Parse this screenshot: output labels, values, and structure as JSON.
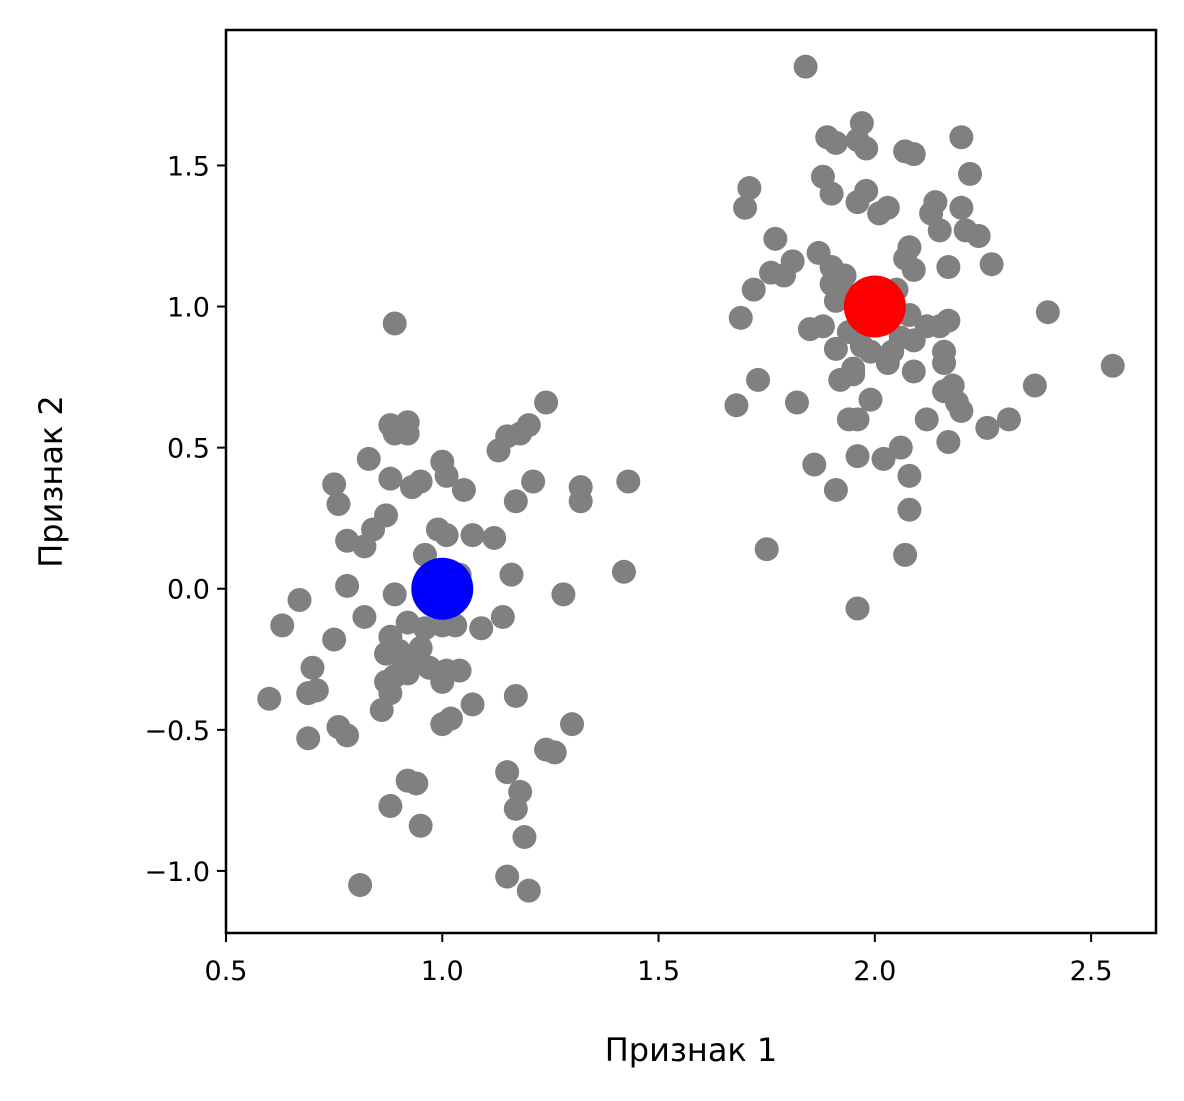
{
  "chart_data": {
    "type": "scatter",
    "title": "",
    "xlabel": "Признак 1",
    "ylabel": "Признак 2",
    "xlim": [
      0.5,
      2.65
    ],
    "ylim": [
      -1.22,
      1.98
    ],
    "grid": false,
    "legend": "none",
    "xticks": [
      0.5,
      1.0,
      1.5,
      2.0,
      2.5
    ],
    "xtick_labels": [
      "0.5",
      "1.0",
      "1.5",
      "2.0",
      "2.5"
    ],
    "yticks": [
      -1.0,
      -0.5,
      0.0,
      0.5,
      1.0,
      1.5
    ],
    "ytick_labels": [
      "−1.0",
      "−0.5",
      "0.0",
      "0.5",
      "1.0",
      "1.5"
    ],
    "colors": {
      "points": "#808080",
      "center_1": "#0000ff",
      "center_2": "#ff0000"
    },
    "series": [
      {
        "color": "#808080",
        "points": [
          [
            0.89,
            0.94
          ],
          [
            0.88,
            0.58
          ],
          [
            0.92,
            0.59
          ],
          [
            0.89,
            0.55
          ],
          [
            0.92,
            0.55
          ],
          [
            0.83,
            0.46
          ],
          [
            1.0,
            0.45
          ],
          [
            0.75,
            0.37
          ],
          [
            0.88,
            0.39
          ],
          [
            0.93,
            0.36
          ],
          [
            0.95,
            0.38
          ],
          [
            1.01,
            0.4
          ],
          [
            1.05,
            0.35
          ],
          [
            0.76,
            0.3
          ],
          [
            0.84,
            0.21
          ],
          [
            0.87,
            0.26
          ],
          [
            0.99,
            0.21
          ],
          [
            1.01,
            0.19
          ],
          [
            1.07,
            0.19
          ],
          [
            1.12,
            0.18
          ],
          [
            0.78,
            0.17
          ],
          [
            0.82,
            0.15
          ],
          [
            0.96,
            0.12
          ],
          [
            1.04,
            0.05
          ],
          [
            1.16,
            0.05
          ],
          [
            1.13,
            0.49
          ],
          [
            1.15,
            0.54
          ],
          [
            1.18,
            0.55
          ],
          [
            1.2,
            0.58
          ],
          [
            1.24,
            0.66
          ],
          [
            1.21,
            0.38
          ],
          [
            1.17,
            0.31
          ],
          [
            1.32,
            0.36
          ],
          [
            1.32,
            0.31
          ],
          [
            1.43,
            0.38
          ],
          [
            1.42,
            0.06
          ],
          [
            1.28,
            -0.02
          ],
          [
            0.78,
            0.01
          ],
          [
            0.89,
            -0.02
          ],
          [
            0.67,
            -0.04
          ],
          [
            0.63,
            -0.13
          ],
          [
            0.75,
            -0.18
          ],
          [
            0.82,
            -0.1
          ],
          [
            0.92,
            -0.12
          ],
          [
            0.96,
            -0.14
          ],
          [
            1.0,
            -0.13
          ],
          [
            1.03,
            -0.13
          ],
          [
            1.09,
            -0.14
          ],
          [
            1.14,
            -0.1
          ],
          [
            0.88,
            -0.17
          ],
          [
            0.9,
            -0.22
          ],
          [
            0.95,
            -0.21
          ],
          [
            0.87,
            -0.23
          ],
          [
            0.94,
            -0.26
          ],
          [
            0.7,
            -0.28
          ],
          [
            0.91,
            -0.28
          ],
          [
            0.97,
            -0.28
          ],
          [
            1.01,
            -0.29
          ],
          [
            1.04,
            -0.29
          ],
          [
            0.87,
            -0.33
          ],
          [
            0.89,
            -0.31
          ],
          [
            0.92,
            -0.3
          ],
          [
            1.0,
            -0.33
          ],
          [
            0.69,
            -0.37
          ],
          [
            0.71,
            -0.36
          ],
          [
            0.6,
            -0.39
          ],
          [
            0.88,
            -0.37
          ],
          [
            1.17,
            -0.38
          ],
          [
            1.07,
            -0.41
          ],
          [
            0.86,
            -0.43
          ],
          [
            1.02,
            -0.46
          ],
          [
            1.0,
            -0.48
          ],
          [
            0.76,
            -0.49
          ],
          [
            0.78,
            -0.52
          ],
          [
            0.69,
            -0.53
          ],
          [
            1.3,
            -0.48
          ],
          [
            1.24,
            -0.57
          ],
          [
            1.26,
            -0.58
          ],
          [
            1.15,
            -0.65
          ],
          [
            0.92,
            -0.68
          ],
          [
            0.94,
            -0.69
          ],
          [
            1.18,
            -0.72
          ],
          [
            0.88,
            -0.77
          ],
          [
            1.17,
            -0.78
          ],
          [
            0.95,
            -0.84
          ],
          [
            1.19,
            -0.88
          ],
          [
            1.15,
            -1.02
          ],
          [
            1.2,
            -1.07
          ],
          [
            0.81,
            -1.05
          ],
          [
            1.84,
            1.85
          ],
          [
            1.97,
            1.65
          ],
          [
            1.89,
            1.6
          ],
          [
            1.91,
            1.58
          ],
          [
            1.96,
            1.59
          ],
          [
            1.98,
            1.56
          ],
          [
            2.07,
            1.55
          ],
          [
            2.09,
            1.54
          ],
          [
            2.2,
            1.6
          ],
          [
            1.88,
            1.46
          ],
          [
            2.22,
            1.47
          ],
          [
            1.71,
            1.42
          ],
          [
            1.98,
            1.41
          ],
          [
            1.9,
            1.4
          ],
          [
            1.96,
            1.37
          ],
          [
            2.03,
            1.35
          ],
          [
            2.01,
            1.33
          ],
          [
            1.7,
            1.35
          ],
          [
            2.14,
            1.37
          ],
          [
            2.13,
            1.33
          ],
          [
            2.15,
            1.27
          ],
          [
            2.2,
            1.35
          ],
          [
            2.21,
            1.27
          ],
          [
            2.24,
            1.25
          ],
          [
            1.77,
            1.24
          ],
          [
            1.87,
            1.19
          ],
          [
            1.81,
            1.16
          ],
          [
            1.9,
            1.14
          ],
          [
            2.08,
            1.21
          ],
          [
            2.07,
            1.17
          ],
          [
            2.09,
            1.13
          ],
          [
            2.17,
            1.14
          ],
          [
            2.27,
            1.15
          ],
          [
            1.76,
            1.12
          ],
          [
            1.79,
            1.11
          ],
          [
            1.93,
            1.11
          ],
          [
            1.9,
            1.08
          ],
          [
            2.05,
            1.06
          ],
          [
            1.72,
            1.06
          ],
          [
            1.94,
            1.04
          ],
          [
            2.02,
            1.02
          ],
          [
            1.91,
            1.02
          ],
          [
            2.08,
            0.97
          ],
          [
            1.69,
            0.96
          ],
          [
            2.12,
            0.93
          ],
          [
            2.15,
            0.93
          ],
          [
            2.17,
            0.95
          ],
          [
            1.85,
            0.92
          ],
          [
            1.88,
            0.93
          ],
          [
            1.94,
            0.91
          ],
          [
            2.06,
            0.89
          ],
          [
            2.09,
            0.88
          ],
          [
            1.91,
            0.85
          ],
          [
            1.97,
            0.86
          ],
          [
            1.99,
            0.84
          ],
          [
            2.04,
            0.84
          ],
          [
            2.16,
            0.84
          ],
          [
            2.03,
            0.8
          ],
          [
            1.95,
            0.78
          ],
          [
            2.16,
            0.8
          ],
          [
            2.09,
            0.77
          ],
          [
            1.92,
            0.74
          ],
          [
            1.95,
            0.76
          ],
          [
            1.73,
            0.74
          ],
          [
            2.18,
            0.72
          ],
          [
            2.16,
            0.7
          ],
          [
            2.37,
            0.72
          ],
          [
            2.4,
            0.98
          ],
          [
            2.55,
            0.79
          ],
          [
            1.99,
            0.67
          ],
          [
            1.82,
            0.66
          ],
          [
            2.19,
            0.66
          ],
          [
            1.68,
            0.65
          ],
          [
            2.2,
            0.63
          ],
          [
            1.94,
            0.6
          ],
          [
            1.96,
            0.6
          ],
          [
            2.12,
            0.6
          ],
          [
            2.26,
            0.57
          ],
          [
            2.31,
            0.6
          ],
          [
            2.17,
            0.52
          ],
          [
            2.06,
            0.5
          ],
          [
            1.96,
            0.47
          ],
          [
            2.02,
            0.46
          ],
          [
            1.86,
            0.44
          ],
          [
            2.08,
            0.4
          ],
          [
            1.91,
            0.35
          ],
          [
            2.08,
            0.28
          ],
          [
            1.75,
            0.14
          ],
          [
            2.07,
            0.12
          ],
          [
            1.96,
            -0.07
          ]
        ]
      },
      {
        "color": "#0000ff",
        "points": [
          [
            1.0,
            0.0
          ]
        ]
      },
      {
        "color": "#ff0000",
        "points": [
          [
            2.0,
            1.0
          ]
        ]
      }
    ]
  }
}
